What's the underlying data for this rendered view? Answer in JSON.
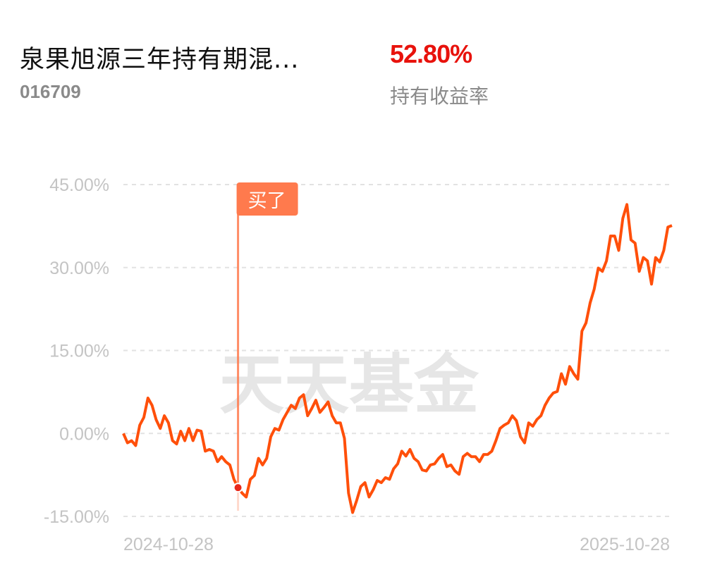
{
  "header": {
    "fund_name": "泉果旭源三年持有期混...",
    "fund_code": "016709",
    "holding_return": "52.80%",
    "holding_return_label": "持有收益率"
  },
  "watermark": "天天基金",
  "chart_data": {
    "type": "line",
    "ylim": [
      -15,
      45
    ],
    "y_ticks": [
      "45.00%",
      "30.00%",
      "15.00%",
      "0.00%",
      "-15.00%"
    ],
    "y_tick_values": [
      45,
      30,
      15,
      0,
      -15
    ],
    "x_tick_labels": [
      "2024-10-28",
      "2025-10-28"
    ],
    "grid": true,
    "line_color": "#ff4f0a",
    "series": [
      {
        "values": [
          0,
          -1.7,
          -1.3,
          -2.2,
          1.5,
          2.9,
          6.4,
          5.1,
          2.5,
          0.9,
          3.2,
          1.9,
          -1.3,
          -1.9,
          0.4,
          -1.3,
          0.9,
          -1.3,
          0.6,
          0.4,
          -3.2,
          -2.9,
          -3.2,
          -5.1,
          -4.2,
          -5.1,
          -5.7,
          -8.3,
          -9.8,
          -10.8,
          -11.5,
          -8.3,
          -7.6,
          -4.5,
          -5.7,
          -4.5,
          -0.6,
          0.9,
          0.6,
          2.5,
          3.8,
          5.1,
          4.5,
          6.4,
          7.0,
          3.2,
          4.5,
          6.0,
          3.8,
          4.7,
          5.7,
          3.2,
          1.9,
          1.9,
          -0.9,
          -10.8,
          -14.3,
          -12.1,
          -9.6,
          -8.9,
          -11.5,
          -10.2,
          -8.5,
          -8.9,
          -8.0,
          -8.3,
          -6.4,
          -5.5,
          -3.2,
          -4.1,
          -2.9,
          -4.5,
          -5.1,
          -6.6,
          -6.8,
          -5.7,
          -5.5,
          -4.5,
          -3.8,
          -6.0,
          -5.7,
          -6.8,
          -7.4,
          -4.2,
          -3.6,
          -4.2,
          -4.2,
          -5.1,
          -3.8,
          -3.8,
          -3.2,
          -1.3,
          0.9,
          1.5,
          1.9,
          3.2,
          2.3,
          -0.6,
          -1.7,
          1.9,
          1.3,
          2.5,
          3.2,
          5.1,
          6.4,
          7.3,
          7.6,
          10.8,
          8.9,
          12.1,
          10.8,
          9.8,
          18.5,
          20.0,
          23.6,
          26.1,
          29.9,
          29.3,
          31.2,
          35.7,
          35.7,
          33.1,
          38.9,
          41.4,
          35.0,
          34.4,
          29.3,
          31.8,
          31.2,
          27.0,
          31.8,
          31.0,
          33.1,
          37.3,
          37.6
        ]
      }
    ],
    "buy_marker": {
      "label": "买了",
      "value": -9.8,
      "color": "#ff7a4d"
    }
  }
}
